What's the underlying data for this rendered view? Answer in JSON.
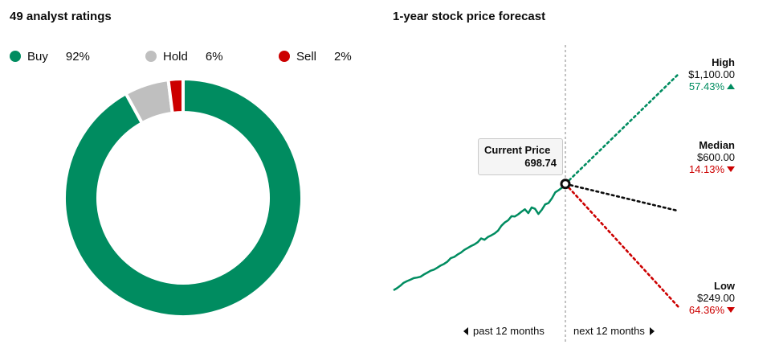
{
  "ratings": {
    "title": "49 analyst ratings"
  },
  "forecast": {
    "title": "1-year stock price forecast",
    "past_label": "past 12 months",
    "next_label": "next 12 months",
    "current": {
      "label": "Current Price",
      "value": "698.74"
    },
    "high": {
      "label": "High",
      "price": "$1,100.00",
      "change": "57.43%",
      "direction": "up"
    },
    "median": {
      "label": "Median",
      "price": "$600.00",
      "change": "14.13%",
      "direction": "down"
    },
    "low": {
      "label": "Low",
      "price": "$249.00",
      "change": "64.36%",
      "direction": "down"
    }
  },
  "colors": {
    "buy": "#008c60",
    "hold": "#bfbfbf",
    "sell": "#cc0000",
    "line": "#008c60",
    "median": "#0c0c0c"
  },
  "chart_data": [
    {
      "type": "pie",
      "title": "49 analyst ratings",
      "categories": [
        "Buy",
        "Hold",
        "Sell"
      ],
      "values": [
        92,
        6,
        2
      ],
      "value_labels": [
        "92%",
        "6%",
        "2%"
      ],
      "legend": "top"
    },
    {
      "type": "line",
      "title": "1-year stock price forecast",
      "xlabel": "",
      "ylabel": "",
      "ylim": [
        249,
        1100
      ],
      "series": [
        {
          "values": [
            311,
            318,
            327,
            338,
            344,
            349,
            355,
            357,
            360,
            368,
            375,
            382,
            386,
            393,
            401,
            407,
            415,
            428,
            432,
            441,
            448,
            458,
            465,
            472,
            478,
            486,
            500,
            495,
            505,
            511,
            518,
            528,
            546,
            558,
            566,
            581,
            580,
            588,
            598,
            606,
            592,
            613,
            608,
            589,
            604,
            624,
            629,
            646,
            668,
            676,
            685,
            698.74
          ]
        },
        {
          "name": "High",
          "values": [
            698.74,
            1100
          ]
        },
        {
          "name": "Median",
          "values": [
            698.74,
            600
          ]
        },
        {
          "name": "Low",
          "values": [
            698.74,
            249
          ]
        }
      ]
    }
  ]
}
